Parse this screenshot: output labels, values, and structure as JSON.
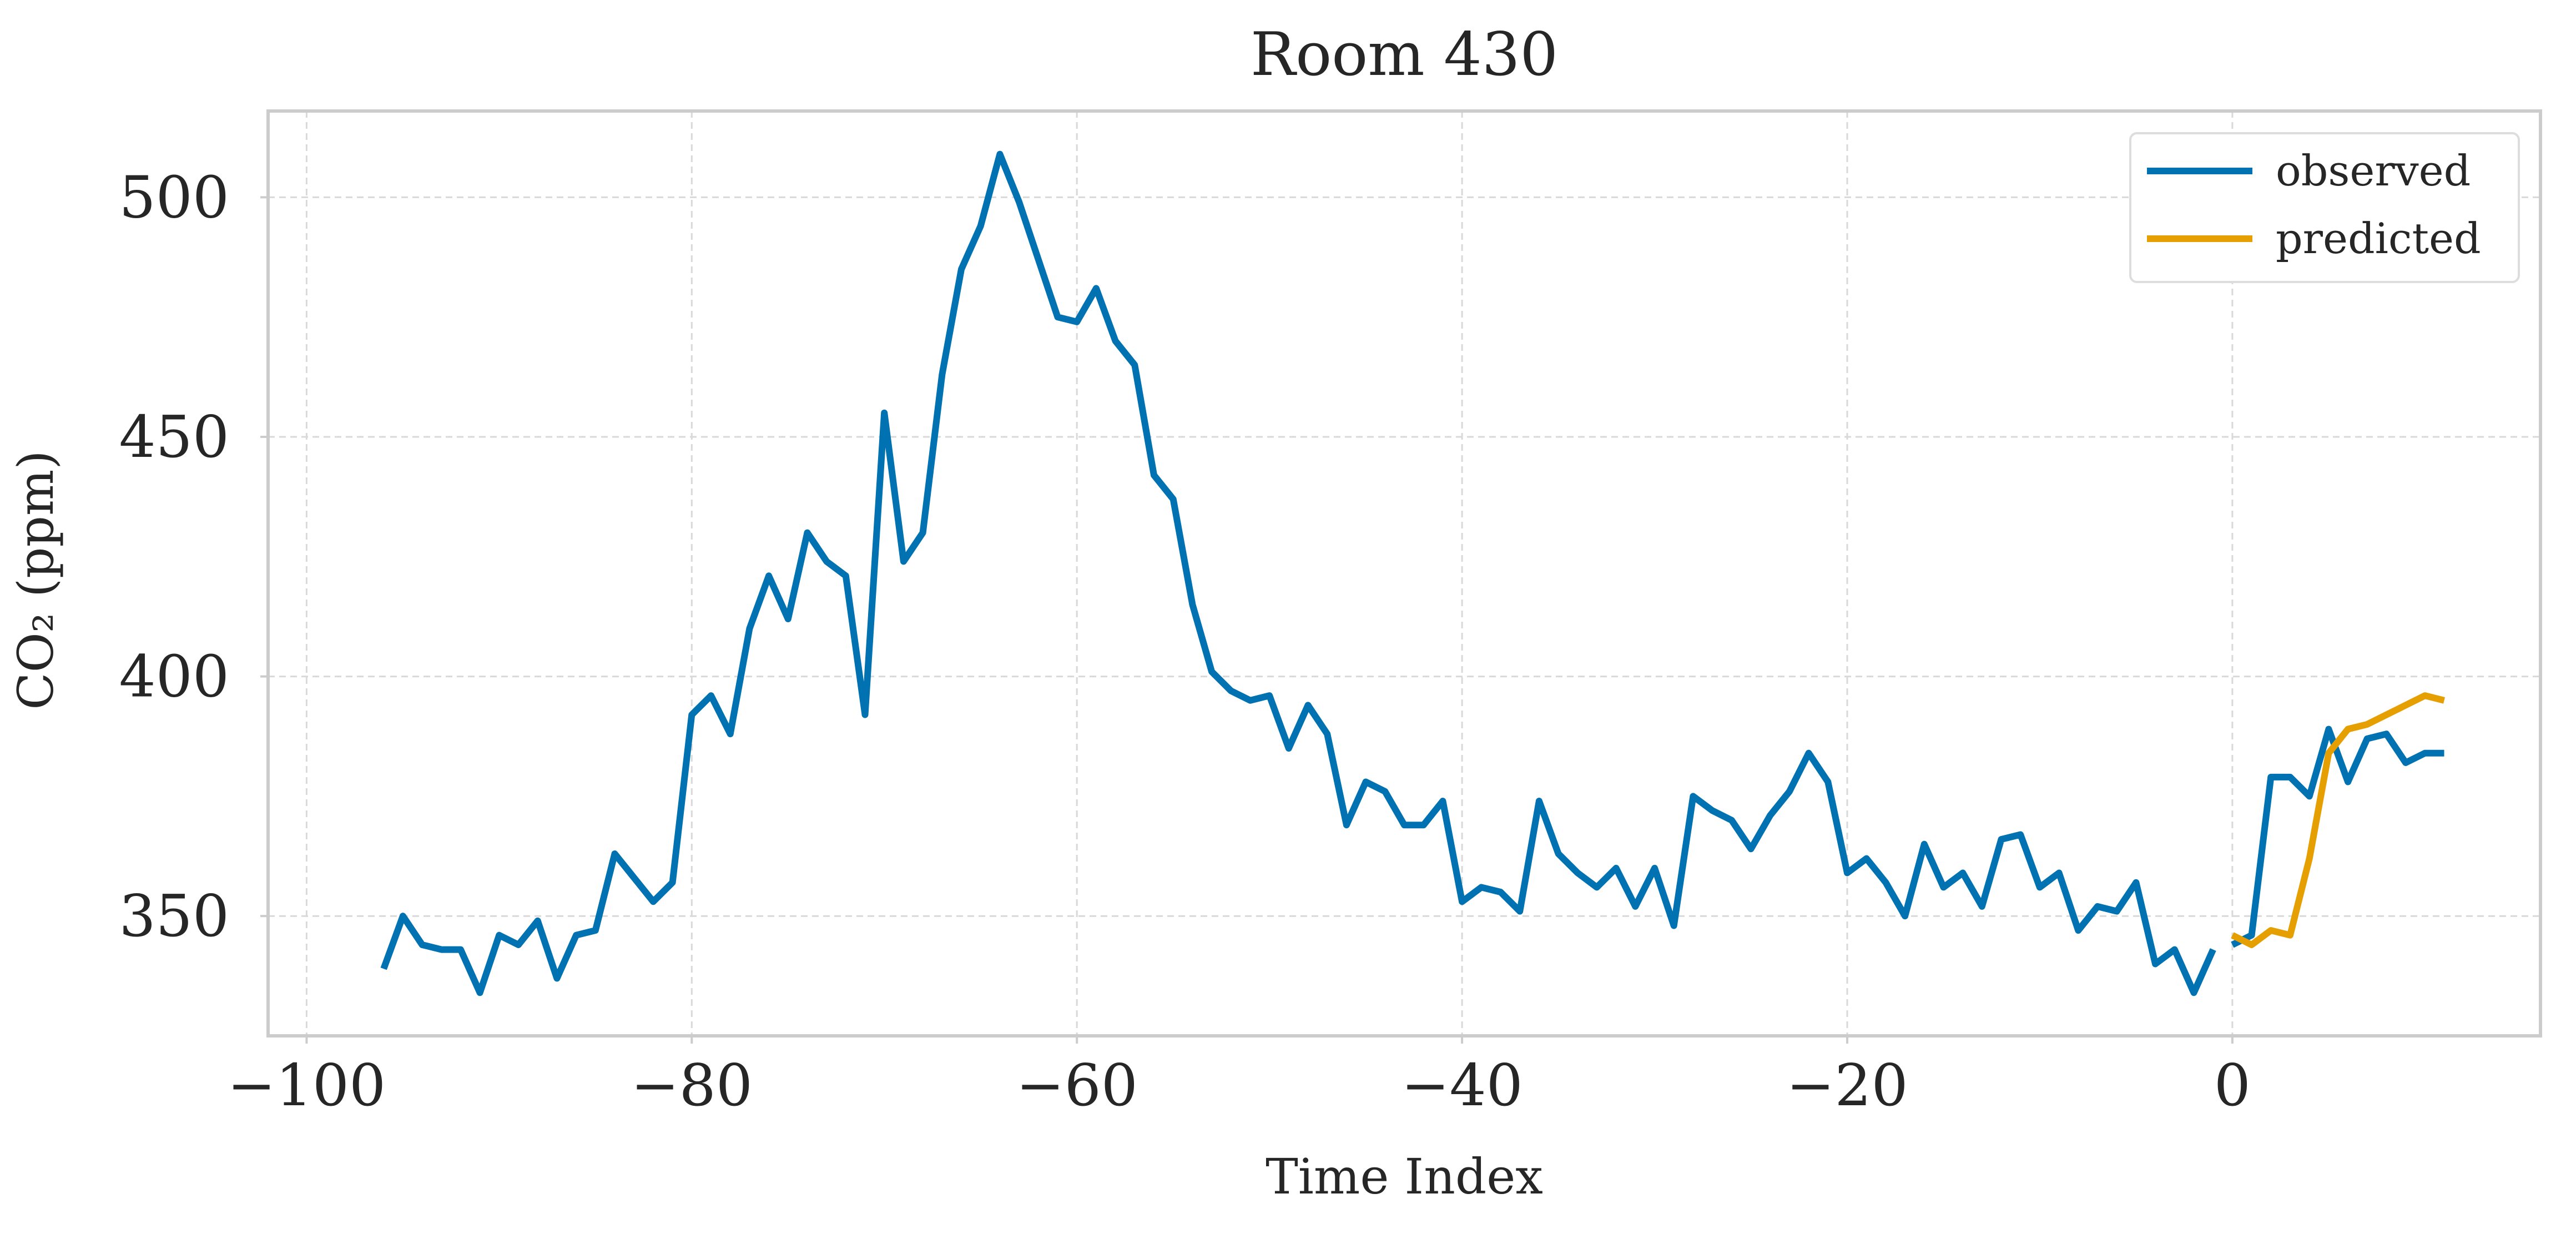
{
  "chart_data": {
    "type": "line",
    "title": "Room 430",
    "xlabel": "Time Index",
    "ylabel": "CO₂ (ppm)",
    "xlim": [
      -102,
      16
    ],
    "ylim": [
      325,
      518
    ],
    "xticks": [
      -100,
      -80,
      -60,
      -40,
      -20,
      0
    ],
    "xtick_labels": [
      "−100",
      "−80",
      "−60",
      "−40",
      "−20",
      "0"
    ],
    "yticks": [
      350,
      400,
      450,
      500
    ],
    "ytick_labels": [
      "350",
      "400",
      "450",
      "500"
    ],
    "grid": true,
    "legend_position": "top-right",
    "series": [
      {
        "name": "observed",
        "color": "#0072B2",
        "segments": [
          {
            "x": [
              -96,
              -95,
              -94,
              -93,
              -92,
              -91,
              -90,
              -89,
              -88,
              -87,
              -86,
              -85,
              -84,
              -83,
              -82,
              -81,
              -80,
              -79,
              -78,
              -77,
              -76,
              -75,
              -74,
              -73,
              -72,
              -71,
              -70,
              -69,
              -68,
              -67,
              -66,
              -65,
              -64,
              -63,
              -62,
              -61,
              -60,
              -59,
              -58,
              -57,
              -56,
              -55,
              -54,
              -53,
              -52,
              -51,
              -50,
              -49,
              -48,
              -47,
              -46,
              -45,
              -44,
              -43,
              -42,
              -41,
              -40,
              -39,
              -38,
              -37,
              -36,
              -35,
              -34,
              -33,
              -32,
              -31,
              -30,
              -29,
              -28,
              -27,
              -26,
              -25,
              -24,
              -23,
              -22,
              -21,
              -20,
              -19,
              -18,
              -17,
              -16,
              -15,
              -14,
              -13,
              -12,
              -11,
              -10,
              -9,
              -8,
              -7,
              -6,
              -5,
              -4,
              -3,
              -2,
              -1
            ],
            "y": [
              339,
              350,
              344,
              343,
              343,
              334,
              346,
              344,
              349,
              337,
              346,
              347,
              363,
              358,
              353,
              357,
              392,
              396,
              388,
              410,
              421,
              412,
              430,
              424,
              421,
              392,
              455,
              424,
              430,
              463,
              485,
              494,
              509,
              499,
              487,
              475,
              474,
              481,
              470,
              465,
              442,
              437,
              415,
              401,
              397,
              395,
              396,
              385,
              394,
              388,
              369,
              378,
              376,
              369,
              369,
              374,
              353,
              356,
              355,
              351,
              374,
              363,
              359,
              356,
              360,
              352,
              360,
              348,
              375,
              372,
              370,
              364,
              371,
              376,
              384,
              378,
              359,
              362,
              357,
              350,
              365,
              356,
              359,
              352,
              366,
              367,
              356,
              359,
              347,
              352,
              351,
              357,
              340,
              343,
              334,
              343
            ]
          },
          {
            "x": [
              0,
              1,
              2,
              3,
              4,
              5,
              6,
              7,
              8,
              9,
              10,
              11
            ],
            "y": [
              344,
              346,
              379,
              379,
              375,
              389,
              378,
              387,
              388,
              382,
              384,
              384
            ]
          }
        ]
      },
      {
        "name": "predicted",
        "color": "#E69F00",
        "segments": [
          {
            "x": [
              0,
              1,
              2,
              3,
              4,
              5,
              6,
              7,
              8,
              9,
              10,
              11
            ],
            "y": [
              346,
              344,
              347,
              346,
              362,
              384,
              389,
              390,
              392,
              394,
              396,
              395
            ]
          }
        ]
      }
    ]
  }
}
